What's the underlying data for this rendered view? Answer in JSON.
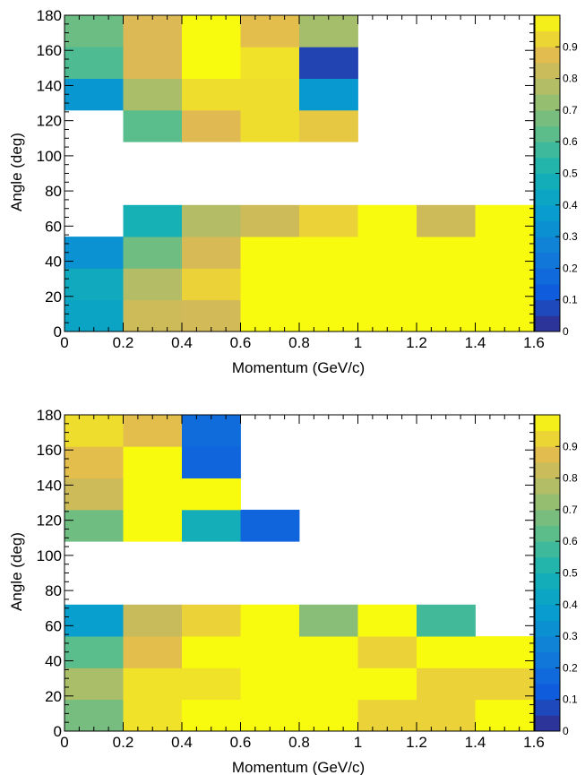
{
  "chart_data": [
    {
      "type": "heatmap",
      "title": "",
      "xlabel": "Momentum (GeV/c)",
      "ylabel": "Angle (deg)",
      "xlim": [
        0,
        1.6
      ],
      "ylim": [
        0,
        180
      ],
      "zlim": [
        0,
        1
      ],
      "x_ticks": [
        "0",
        "0.2",
        "0.4",
        "0.6",
        "0.8",
        "1",
        "1.2",
        "1.4",
        "1.6"
      ],
      "y_ticks": [
        "0",
        "20",
        "40",
        "60",
        "80",
        "100",
        "120",
        "140",
        "160",
        "180"
      ],
      "palette_ticks": [
        "0",
        "0.1",
        "0.2",
        "0.3",
        "0.4",
        "0.5",
        "0.6",
        "0.7",
        "0.8",
        "0.9"
      ],
      "x_bins": [
        0,
        0.2,
        0.4,
        0.6,
        0.8,
        1.0,
        1.2,
        1.4,
        1.6
      ],
      "y_bins": [
        0,
        18,
        36,
        54,
        72,
        90,
        108,
        126,
        144,
        162,
        180
      ],
      "values": [
        [
          0.42,
          0.83,
          0.84,
          1.0,
          1.0,
          1.0,
          1.0,
          1.0
        ],
        [
          0.45,
          0.78,
          0.92,
          1.0,
          1.0,
          1.0,
          1.0,
          1.0
        ],
        [
          0.33,
          0.66,
          0.85,
          1.0,
          1.0,
          1.0,
          1.0,
          1.0
        ],
        [
          null,
          0.5,
          0.78,
          0.83,
          0.92,
          1.0,
          0.83,
          1.0
        ],
        [
          null,
          null,
          null,
          null,
          null,
          null,
          null,
          null
        ],
        [
          null,
          null,
          null,
          null,
          null,
          null,
          null,
          null
        ],
        [
          null,
          0.62,
          0.87,
          0.94,
          0.9,
          null,
          null,
          null
        ],
        [
          0.35,
          0.76,
          0.94,
          0.94,
          0.36,
          null,
          null,
          null
        ],
        [
          0.6,
          0.86,
          1.0,
          0.95,
          0.06,
          null,
          null,
          null
        ],
        [
          0.65,
          0.86,
          1.0,
          0.88,
          0.75,
          null,
          null,
          null
        ]
      ]
    },
    {
      "type": "heatmap",
      "title": "",
      "xlabel": "Momentum (GeV/c)",
      "ylabel": "Angle (deg)",
      "xlim": [
        0,
        1.6
      ],
      "ylim": [
        0,
        180
      ],
      "zlim": [
        0,
        1
      ],
      "x_ticks": [
        "0",
        "0.2",
        "0.4",
        "0.6",
        "0.8",
        "1",
        "1.2",
        "1.4",
        "1.6"
      ],
      "y_ticks": [
        "0",
        "20",
        "40",
        "60",
        "80",
        "100",
        "120",
        "140",
        "160",
        "180"
      ],
      "palette_ticks": [
        "0",
        "0.1",
        "0.2",
        "0.3",
        "0.4",
        "0.5",
        "0.6",
        "0.7",
        "0.8",
        "0.9"
      ],
      "x_bins": [
        0,
        0.2,
        0.4,
        0.6,
        0.8,
        1.0,
        1.2,
        1.4,
        1.6
      ],
      "y_bins": [
        0,
        18,
        36,
        54,
        72,
        90,
        108,
        126,
        144,
        162,
        180
      ],
      "values": [
        [
          0.67,
          0.95,
          1.0,
          1.0,
          1.0,
          0.92,
          0.92,
          1.0
        ],
        [
          0.76,
          0.95,
          0.95,
          1.0,
          1.0,
          1.0,
          0.92,
          0.92
        ],
        [
          0.62,
          0.88,
          1.0,
          1.0,
          1.0,
          0.92,
          1.0,
          1.0
        ],
        [
          0.38,
          0.82,
          0.92,
          1.0,
          0.7,
          1.0,
          0.58,
          null
        ],
        [
          null,
          null,
          null,
          null,
          null,
          null,
          null,
          null
        ],
        [
          null,
          null,
          null,
          null,
          null,
          null,
          null,
          null
        ],
        [
          0.66,
          1.0,
          0.48,
          0.15,
          null,
          null,
          null,
          null
        ],
        [
          0.83,
          1.0,
          1.0,
          null,
          null,
          null,
          null,
          null
        ],
        [
          0.88,
          1.0,
          0.15,
          null,
          null,
          null,
          null,
          null
        ],
        [
          0.94,
          0.88,
          0.18,
          null,
          null,
          null,
          null,
          null
        ]
      ]
    }
  ]
}
